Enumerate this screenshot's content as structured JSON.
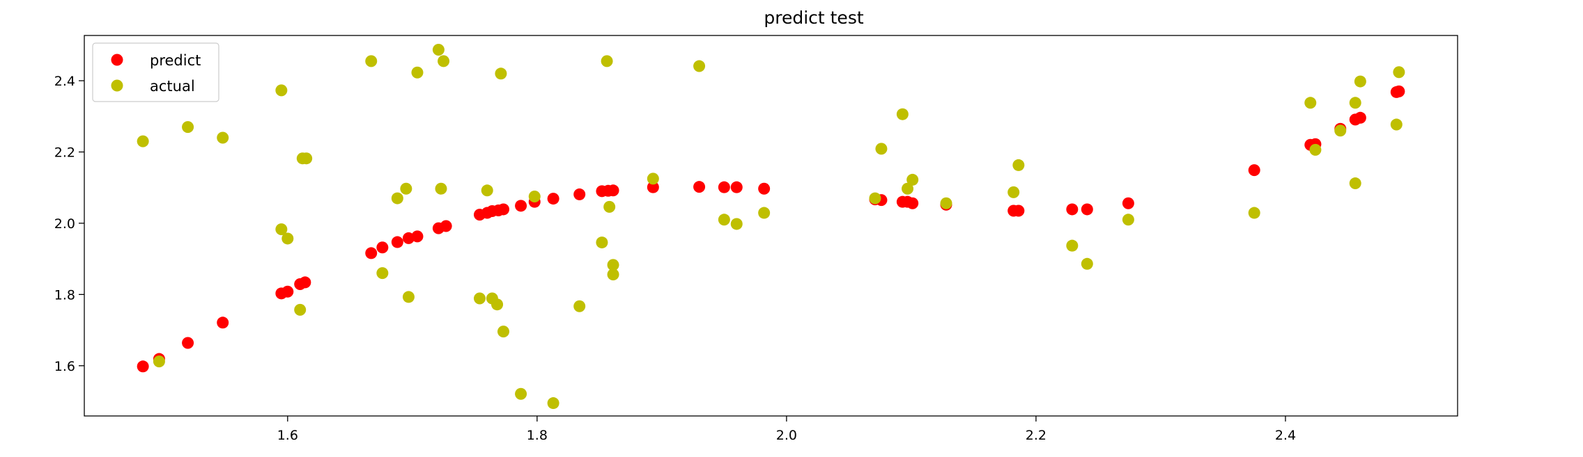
{
  "chart_data": {
    "type": "scatter",
    "title": "predict test",
    "xlabel": "",
    "ylabel": "",
    "xlim": [
      1.437,
      2.538
    ],
    "ylim": [
      1.459,
      2.527
    ],
    "xticks": [
      1.6,
      1.8,
      2.0,
      2.2,
      2.4
    ],
    "xtick_labels": [
      "1.6",
      "1.8",
      "2.0",
      "2.2",
      "2.4"
    ],
    "yticks": [
      1.6,
      1.8,
      2.0,
      2.2,
      2.4
    ],
    "ytick_labels": [
      "1.6",
      "1.8",
      "2.0",
      "2.2",
      "2.4"
    ],
    "grid": false,
    "legend_position": "top-left",
    "series": [
      {
        "name": "predict",
        "color": "#ff0000",
        "points": [
          [
            1.484,
            1.598
          ],
          [
            1.497,
            1.619
          ],
          [
            1.52,
            1.664
          ],
          [
            1.548,
            1.721
          ],
          [
            1.595,
            1.803
          ],
          [
            1.6,
            1.808
          ],
          [
            1.61,
            1.829
          ],
          [
            1.614,
            1.834
          ],
          [
            1.667,
            1.916
          ],
          [
            1.676,
            1.932
          ],
          [
            1.688,
            1.947
          ],
          [
            1.697,
            1.958
          ],
          [
            1.704,
            1.963
          ],
          [
            1.721,
            1.986
          ],
          [
            1.727,
            1.992
          ],
          [
            1.754,
            2.024
          ],
          [
            1.76,
            2.029
          ],
          [
            1.764,
            2.034
          ],
          [
            1.769,
            2.036
          ],
          [
            1.773,
            2.039
          ],
          [
            1.787,
            2.049
          ],
          [
            1.798,
            2.06
          ],
          [
            1.813,
            2.069
          ],
          [
            1.834,
            2.081
          ],
          [
            1.852,
            2.09
          ],
          [
            1.857,
            2.091
          ],
          [
            1.861,
            2.092
          ],
          [
            1.893,
            2.101
          ],
          [
            1.93,
            2.102
          ],
          [
            1.95,
            2.101
          ],
          [
            1.96,
            2.101
          ],
          [
            1.982,
            2.097
          ],
          [
            2.071,
            2.067
          ],
          [
            2.076,
            2.065
          ],
          [
            2.093,
            2.06
          ],
          [
            2.097,
            2.06
          ],
          [
            2.101,
            2.056
          ],
          [
            2.128,
            2.052
          ],
          [
            2.182,
            2.035
          ],
          [
            2.186,
            2.035
          ],
          [
            2.229,
            2.039
          ],
          [
            2.241,
            2.039
          ],
          [
            2.274,
            2.056
          ],
          [
            2.375,
            2.149
          ],
          [
            2.42,
            2.22
          ],
          [
            2.424,
            2.222
          ],
          [
            2.444,
            2.265
          ],
          [
            2.456,
            2.291
          ],
          [
            2.46,
            2.296
          ],
          [
            2.489,
            2.368
          ],
          [
            2.491,
            2.37
          ]
        ]
      },
      {
        "name": "actual",
        "color": "#bfbf00",
        "points": [
          [
            1.484,
            2.23
          ],
          [
            1.497,
            1.612
          ],
          [
            1.52,
            2.27
          ],
          [
            1.548,
            2.24
          ],
          [
            1.595,
            2.373
          ],
          [
            1.595,
            1.983
          ],
          [
            1.6,
            1.957
          ],
          [
            1.61,
            1.757
          ],
          [
            1.612,
            2.182
          ],
          [
            1.615,
            2.182
          ],
          [
            1.667,
            2.455
          ],
          [
            1.676,
            1.86
          ],
          [
            1.688,
            2.07
          ],
          [
            1.695,
            2.097
          ],
          [
            1.697,
            1.793
          ],
          [
            1.704,
            2.423
          ],
          [
            1.721,
            2.487
          ],
          [
            1.723,
            2.097
          ],
          [
            1.725,
            2.455
          ],
          [
            1.754,
            1.789
          ],
          [
            1.76,
            2.092
          ],
          [
            1.764,
            1.789
          ],
          [
            1.768,
            1.772
          ],
          [
            1.771,
            2.42
          ],
          [
            1.773,
            1.696
          ],
          [
            1.787,
            1.521
          ],
          [
            1.798,
            2.075
          ],
          [
            1.813,
            1.495
          ],
          [
            1.834,
            1.767
          ],
          [
            1.852,
            1.946
          ],
          [
            1.856,
            2.455
          ],
          [
            1.858,
            2.046
          ],
          [
            1.861,
            1.883
          ],
          [
            1.861,
            1.856
          ],
          [
            1.893,
            2.125
          ],
          [
            1.93,
            2.441
          ],
          [
            1.95,
            2.01
          ],
          [
            1.96,
            1.998
          ],
          [
            1.982,
            2.029
          ],
          [
            2.071,
            2.07
          ],
          [
            2.076,
            2.209
          ],
          [
            2.093,
            2.306
          ],
          [
            2.097,
            2.097
          ],
          [
            2.101,
            2.122
          ],
          [
            2.128,
            2.056
          ],
          [
            2.182,
            2.087
          ],
          [
            2.186,
            2.163
          ],
          [
            2.229,
            1.937
          ],
          [
            2.241,
            1.886
          ],
          [
            2.274,
            2.01
          ],
          [
            2.375,
            2.029
          ],
          [
            2.42,
            2.338
          ],
          [
            2.424,
            2.206
          ],
          [
            2.444,
            2.26
          ],
          [
            2.456,
            2.338
          ],
          [
            2.456,
            2.112
          ],
          [
            2.46,
            2.398
          ],
          [
            2.489,
            2.277
          ],
          [
            2.491,
            2.424
          ]
        ]
      }
    ]
  }
}
